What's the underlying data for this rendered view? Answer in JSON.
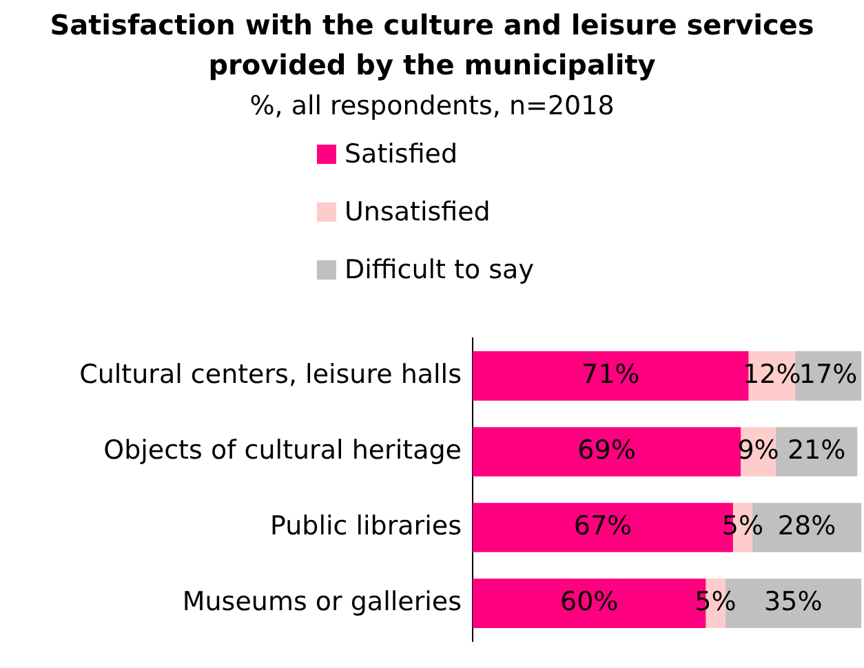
{
  "chart_data": {
    "type": "bar",
    "orientation": "horizontal",
    "stacked": true,
    "title": "Satisfaction with the culture and leisure services provided by the municipality",
    "subtitle": "%, all respondents, n=2018",
    "categories": [
      "Cultural centers, leisure halls",
      "Objects of cultural heritage",
      "Public libraries",
      "Museums or galleries"
    ],
    "series": [
      {
        "name": "Satisfied",
        "color": "#ff0080",
        "values": [
          71,
          69,
          67,
          60
        ],
        "value_labels": [
          "71%",
          "69%",
          "67%",
          "60%"
        ]
      },
      {
        "name": "Unsatisfied",
        "color": "#ffcccc",
        "values": [
          12,
          9,
          5,
          5
        ],
        "value_labels": [
          "12%",
          "9%",
          "5%",
          "5%"
        ]
      },
      {
        "name": "Difficult to say",
        "color": "#c0c0c0",
        "values": [
          17,
          21,
          28,
          35
        ],
        "value_labels": [
          "17%",
          "21%",
          "28%",
          "35%"
        ]
      }
    ],
    "xlim": [
      0,
      100
    ],
    "tick_labels": "y",
    "grid": false,
    "legend": "top"
  }
}
